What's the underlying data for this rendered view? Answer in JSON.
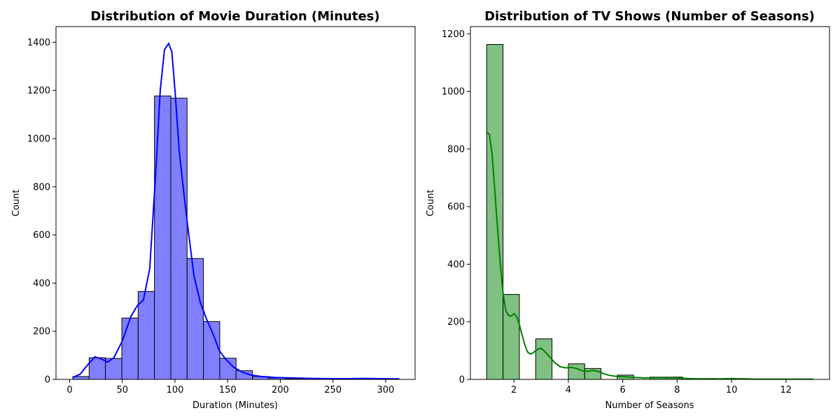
{
  "chart_data": [
    {
      "type": "histogram",
      "title": "Distribution of Movie Duration (Minutes)",
      "xlabel": "Duration (Minutes)",
      "ylabel": "Count",
      "xlim": [
        -13,
        328
      ],
      "ylim": [
        0,
        1465
      ],
      "xticks": [
        0,
        50,
        100,
        150,
        200,
        250,
        300
      ],
      "yticks": [
        0,
        200,
        400,
        600,
        800,
        1000,
        1200,
        1400
      ],
      "bar_color": "#8080ff",
      "edge_color": "#000000",
      "kde_color": "#0000ff",
      "bins": [
        {
          "x0": 3,
          "x1": 18.5,
          "count": 12
        },
        {
          "x0": 18.5,
          "x1": 34,
          "count": 90
        },
        {
          "x0": 34,
          "x1": 49.5,
          "count": 87
        },
        {
          "x0": 49.5,
          "x1": 65,
          "count": 255
        },
        {
          "x0": 65,
          "x1": 80.5,
          "count": 365
        },
        {
          "x0": 80.5,
          "x1": 96,
          "count": 1177
        },
        {
          "x0": 96,
          "x1": 111.5,
          "count": 1168
        },
        {
          "x0": 111.5,
          "x1": 127,
          "count": 502
        },
        {
          "x0": 127,
          "x1": 142.5,
          "count": 240
        },
        {
          "x0": 142.5,
          "x1": 158,
          "count": 88
        },
        {
          "x0": 158,
          "x1": 173.5,
          "count": 36
        },
        {
          "x0": 173.5,
          "x1": 189,
          "count": 12
        },
        {
          "x0": 189,
          "x1": 204.5,
          "count": 6
        },
        {
          "x0": 204.5,
          "x1": 220,
          "count": 3
        },
        {
          "x0": 220,
          "x1": 235.5,
          "count": 2
        },
        {
          "x0": 235.5,
          "x1": 251,
          "count": 1
        },
        {
          "x0": 251,
          "x1": 266.5,
          "count": 1
        },
        {
          "x0": 266.5,
          "x1": 282,
          "count": 1
        },
        {
          "x0": 282,
          "x1": 297.5,
          "count": 1
        },
        {
          "x0": 297.5,
          "x1": 313,
          "count": 1
        }
      ],
      "kde": [
        [
          3,
          8
        ],
        [
          10,
          22
        ],
        [
          17,
          60
        ],
        [
          24,
          94
        ],
        [
          30,
          85
        ],
        [
          36,
          72
        ],
        [
          42,
          90
        ],
        [
          50,
          160
        ],
        [
          58,
          260
        ],
        [
          64,
          305
        ],
        [
          70,
          330
        ],
        [
          76,
          460
        ],
        [
          82,
          880
        ],
        [
          86,
          1200
        ],
        [
          90,
          1370
        ],
        [
          94,
          1395
        ],
        [
          97,
          1360
        ],
        [
          100,
          1200
        ],
        [
          104,
          950
        ],
        [
          108,
          790
        ],
        [
          112,
          640
        ],
        [
          118,
          430
        ],
        [
          124,
          320
        ],
        [
          130,
          250
        ],
        [
          136,
          190
        ],
        [
          142,
          120
        ],
        [
          148,
          85
        ],
        [
          156,
          50
        ],
        [
          164,
          30
        ],
        [
          172,
          18
        ],
        [
          182,
          12
        ],
        [
          195,
          8
        ],
        [
          210,
          6
        ],
        [
          230,
          4
        ],
        [
          250,
          3
        ],
        [
          265,
          3
        ],
        [
          280,
          4
        ],
        [
          295,
          3
        ],
        [
          313,
          2
        ]
      ]
    },
    {
      "type": "histogram",
      "title": "Distribution of TV Shows (Number of Seasons)",
      "xlabel": "Number of Seasons",
      "ylabel": "Count",
      "xlim": [
        0.4,
        13.6
      ],
      "ylim": [
        0,
        1225
      ],
      "xticks": [
        2,
        4,
        6,
        8,
        10,
        12
      ],
      "yticks": [
        0,
        200,
        400,
        600,
        800,
        1000,
        1200
      ],
      "bar_color": "#80c080",
      "edge_color": "#000000",
      "kde_color": "#008000",
      "bins": [
        {
          "x0": 1,
          "x1": 1.6,
          "count": 1163
        },
        {
          "x0": 1.6,
          "x1": 2.2,
          "count": 295
        },
        {
          "x0": 2.2,
          "x1": 2.8,
          "count": 0
        },
        {
          "x0": 2.8,
          "x1": 3.4,
          "count": 141
        },
        {
          "x0": 3.4,
          "x1": 4.0,
          "count": 0
        },
        {
          "x0": 4.0,
          "x1": 4.6,
          "count": 54
        },
        {
          "x0": 4.6,
          "x1": 5.2,
          "count": 38
        },
        {
          "x0": 5.2,
          "x1": 5.8,
          "count": 0
        },
        {
          "x0": 5.8,
          "x1": 6.4,
          "count": 15
        },
        {
          "x0": 6.4,
          "x1": 7.0,
          "count": 0
        },
        {
          "x0": 7.0,
          "x1": 7.6,
          "count": 8
        },
        {
          "x0": 7.6,
          "x1": 8.2,
          "count": 8
        },
        {
          "x0": 8.2,
          "x1": 8.8,
          "count": 0
        },
        {
          "x0": 8.8,
          "x1": 9.4,
          "count": 3
        },
        {
          "x0": 9.4,
          "x1": 10.0,
          "count": 0
        },
        {
          "x0": 10.0,
          "x1": 10.6,
          "count": 3
        },
        {
          "x0": 10.6,
          "x1": 11.2,
          "count": 0
        },
        {
          "x0": 11.2,
          "x1": 11.8,
          "count": 1
        },
        {
          "x0": 11.8,
          "x1": 12.4,
          "count": 0
        },
        {
          "x0": 12.4,
          "x1": 13.0,
          "count": 1
        }
      ],
      "kde": [
        [
          1.0,
          860
        ],
        [
          1.1,
          850
        ],
        [
          1.2,
          780
        ],
        [
          1.3,
          650
        ],
        [
          1.4,
          520
        ],
        [
          1.5,
          400
        ],
        [
          1.6,
          300
        ],
        [
          1.7,
          240
        ],
        [
          1.8,
          222
        ],
        [
          1.9,
          220
        ],
        [
          2.0,
          228
        ],
        [
          2.1,
          218
        ],
        [
          2.2,
          190
        ],
        [
          2.3,
          155
        ],
        [
          2.4,
          120
        ],
        [
          2.5,
          95
        ],
        [
          2.6,
          88
        ],
        [
          2.7,
          92
        ],
        [
          2.8,
          100
        ],
        [
          2.9,
          106
        ],
        [
          3.0,
          108
        ],
        [
          3.1,
          100
        ],
        [
          3.3,
          80
        ],
        [
          3.5,
          58
        ],
        [
          3.7,
          44
        ],
        [
          3.9,
          40
        ],
        [
          4.1,
          42
        ],
        [
          4.3,
          38
        ],
        [
          4.5,
          30
        ],
        [
          4.7,
          28
        ],
        [
          4.9,
          31
        ],
        [
          5.1,
          28
        ],
        [
          5.3,
          20
        ],
        [
          5.5,
          14
        ],
        [
          5.8,
          10
        ],
        [
          6.1,
          9
        ],
        [
          6.4,
          7
        ],
        [
          6.8,
          5
        ],
        [
          7.2,
          6
        ],
        [
          7.6,
          6
        ],
        [
          8.0,
          5
        ],
        [
          8.4,
          3
        ],
        [
          8.8,
          2
        ],
        [
          9.2,
          2
        ],
        [
          9.6,
          2
        ],
        [
          10.0,
          3
        ],
        [
          10.4,
          2
        ],
        [
          10.8,
          1
        ],
        [
          11.2,
          1
        ],
        [
          11.6,
          1
        ],
        [
          12.0,
          1
        ],
        [
          12.5,
          1
        ],
        [
          13.0,
          1
        ]
      ]
    }
  ]
}
